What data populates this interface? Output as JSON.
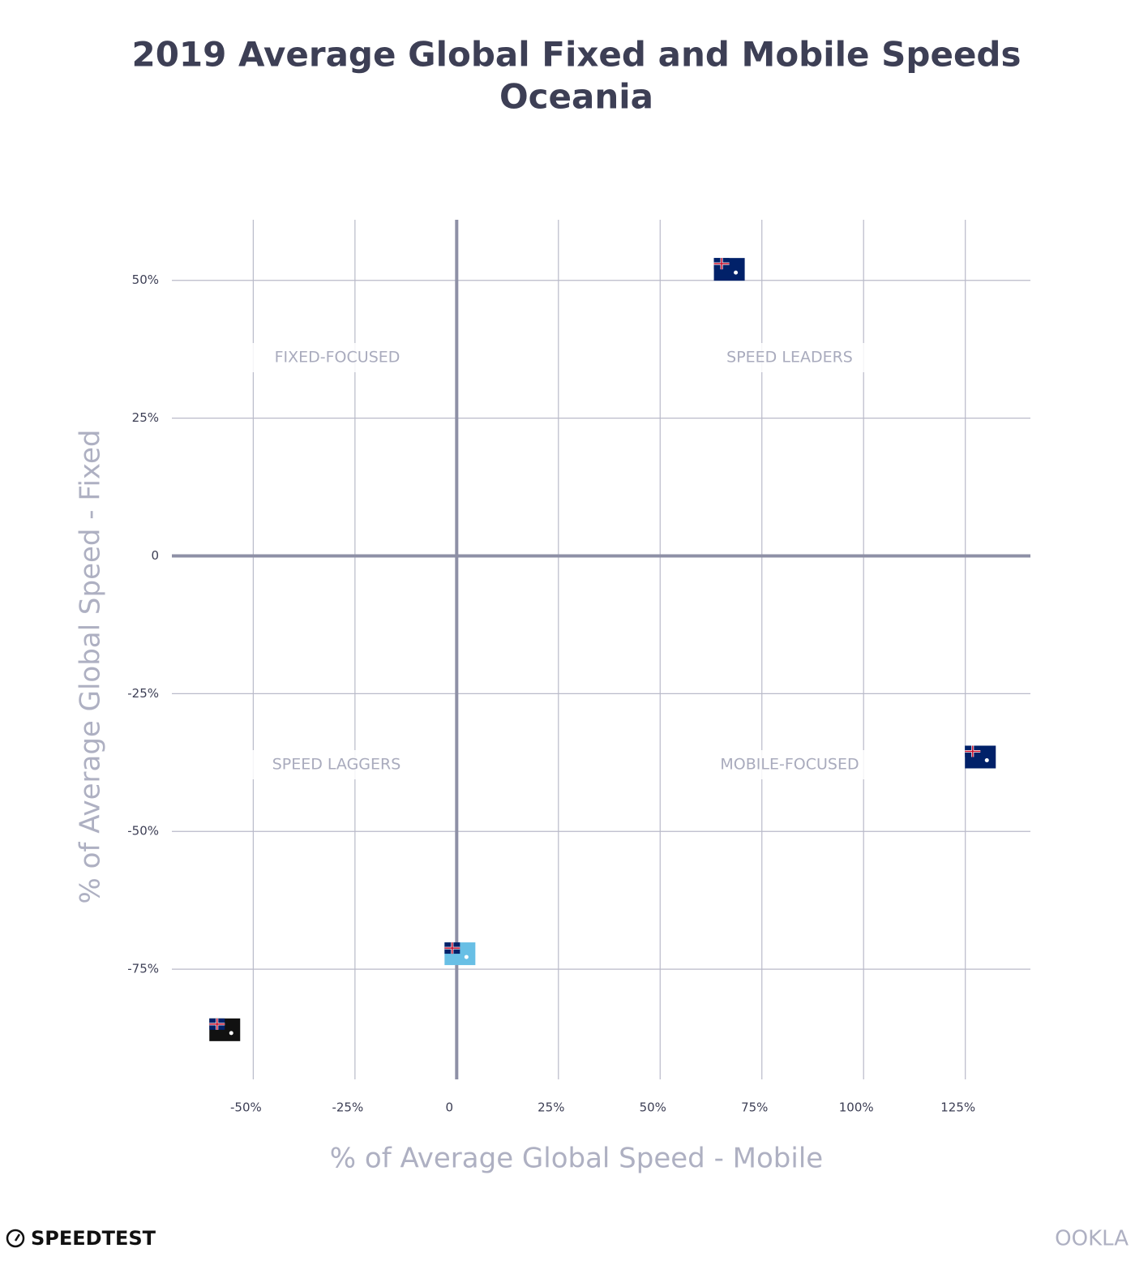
{
  "chart_data": {
    "type": "scatter",
    "title": "2019 Average Global Fixed and Mobile Speeds",
    "subtitle": "Oceania",
    "x_label": "% of Average Global Speed - Mobile",
    "y_label": "% of Average Global Speed - Fixed",
    "annotations": [
      "FIXED-FOCUSED",
      "SPEED LEADERS",
      "SPEED LAGGERS",
      "MOBILE-FOCUSED"
    ],
    "x": [
      67,
      128.7,
      0.8,
      -57
    ],
    "values": [
      52,
      -36.5,
      -72.2,
      -86
    ],
    "colors": [
      "#012169",
      "#012169",
      "#68bfe5",
      "#111111"
    ],
    "xlim": [
      -70,
      141
    ],
    "ylim": [
      -95,
      61
    ],
    "xticks": [
      {
        "value": -50,
        "label": "-50%"
      },
      {
        "value": -25,
        "label": "-25%"
      },
      0,
      {
        "value": 25,
        "label": "25%"
      },
      {
        "value": 50,
        "label": "50%"
      },
      {
        "value": 75,
        "label": "75%"
      },
      {
        "value": 100,
        "label": "100%"
      },
      {
        "value": 125,
        "label": "125%"
      }
    ],
    "yticks": [
      {
        "value": 50,
        "label": "50%"
      },
      {
        "value": 25,
        "label": "25%"
      },
      0,
      {
        "value": -25,
        "label": "-25%"
      },
      {
        "value": -50,
        "label": "-50%"
      },
      {
        "value": -75,
        "label": "-75%"
      }
    ],
    "grid": true
  },
  "footer": {
    "left": "SPEEDTEST",
    "right": "OOKLA"
  }
}
